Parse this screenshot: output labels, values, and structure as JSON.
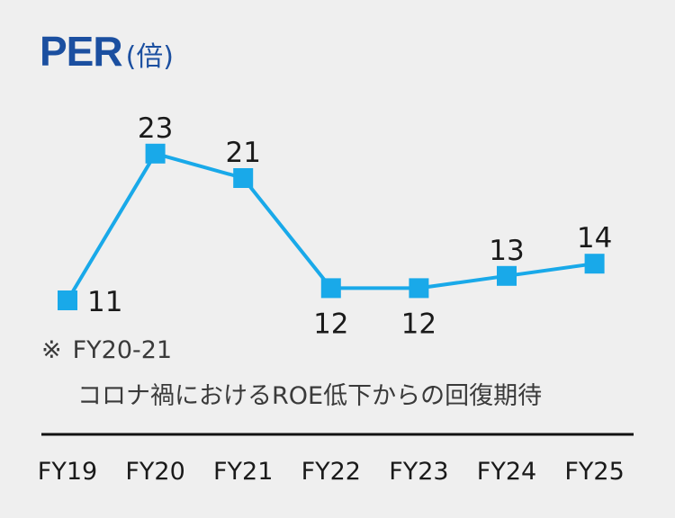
{
  "colors": {
    "accent": "#1b4fa0",
    "line": "#19a9e9",
    "text": "#1a1a1a",
    "axis": "#111111"
  },
  "title": {
    "main": "PER",
    "unit": "(倍)"
  },
  "note": {
    "mark": "※",
    "line1": "FY20-21",
    "line2": "コロナ禍におけるROE低下からの回復期待"
  },
  "chart_data": {
    "type": "line",
    "categories": [
      "FY19",
      "FY20",
      "FY21",
      "FY22",
      "FY23",
      "FY24",
      "FY25"
    ],
    "values": [
      11,
      23,
      21,
      12,
      12,
      13,
      14
    ],
    "data_labels": [
      "11",
      "23",
      "21",
      "12",
      "12",
      "13",
      "14"
    ],
    "label_position": [
      "right",
      "above",
      "above",
      "below",
      "below",
      "above",
      "above"
    ],
    "marker": "square",
    "title": "PER",
    "ylabel": "(倍)",
    "grid": false,
    "legend": "none"
  }
}
